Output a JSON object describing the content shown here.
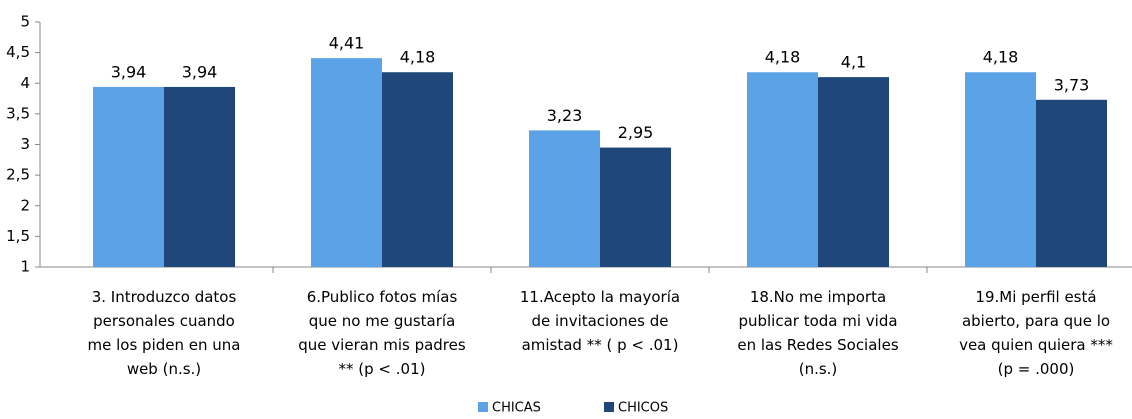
{
  "chart_data": {
    "type": "bar",
    "categories": [
      "3. Introduzco datos\npersonales cuando\nme los piden en una\nweb (n.s.)",
      "6.Publico fotos mías\nque no me gustaría\nque vieran mis padres\n** (p < .01)",
      "11.Acepto la mayoría\nde invitaciones de\namistad ** ( p < .01)",
      "18.No me importa\npublicar toda mi vida\nen las Redes Sociales\n(n.s.)",
      "19.Mi perfil está\nabierto, para que lo\nvea quien quiera ***\n(p = .000)"
    ],
    "series": [
      {
        "name": "CHICAS",
        "color": "#5ba3e6",
        "values": [
          3.94,
          4.41,
          3.23,
          4.18,
          4.18
        ],
        "value_labels": [
          "3,94",
          "4,41",
          "3,23",
          "4,18",
          "4,18"
        ]
      },
      {
        "name": "CHICOS",
        "color": "#1f477a",
        "values": [
          3.94,
          4.18,
          2.95,
          4.1,
          3.73
        ],
        "value_labels": [
          "3,94",
          "4,18",
          "2,95",
          "4,1",
          "3,73"
        ]
      }
    ],
    "ylim": [
      1,
      5
    ],
    "yticks": [
      1,
      {
        "value": 1.5,
        "label": "1,5"
      },
      2,
      {
        "value": 2.5,
        "label": "2,5"
      },
      3,
      {
        "value": 3.5,
        "label": "3,5"
      },
      4,
      {
        "value": 4.5,
        "label": "4,5"
      },
      5
    ],
    "legend": "bottom"
  }
}
